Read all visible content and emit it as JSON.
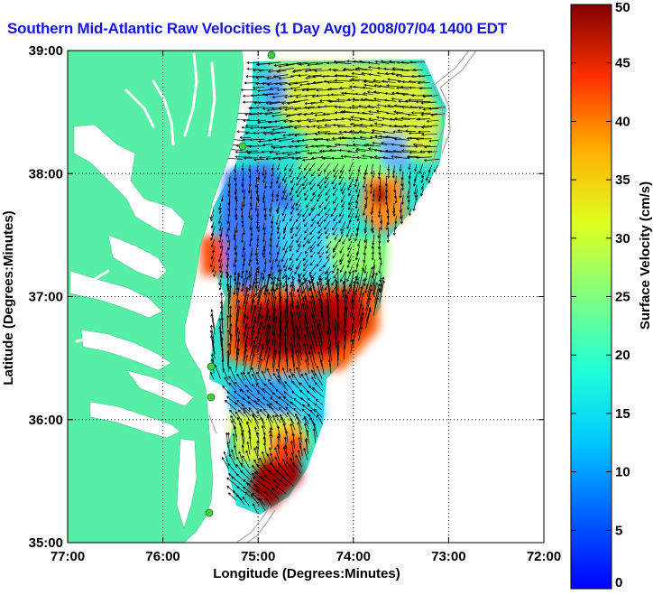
{
  "title": "Southern Mid-Atlantic Raw Velocities (1 Day Avg) 2008/07/04 1400 EDT",
  "map": {
    "x_axis": {
      "label": "Longitude (Degrees:Minutes)",
      "ticks": [
        "77:00",
        "76:00",
        "75:00",
        "74:00",
        "73:00",
        "72:00"
      ],
      "range": [
        -77,
        -72
      ]
    },
    "y_axis": {
      "label": "Latitude (Degrees:Minutes)",
      "ticks": [
        "39:00",
        "38:00",
        "37:00",
        "36:00",
        "35:00"
      ],
      "range": [
        35,
        39
      ]
    },
    "grid": "dotted",
    "colors": {
      "land": "#55efa5",
      "water": "#ffffff",
      "vector": "#000000",
      "station": "#44cc44",
      "bathymetry": "#999999"
    }
  },
  "colorbar": {
    "label": "Surface Velocity (cm/s)",
    "min": 0,
    "max": 50,
    "ticks": [
      "0",
      "5",
      "10",
      "15",
      "20",
      "25",
      "30",
      "35",
      "40",
      "45",
      "50"
    ],
    "colormap": "jet"
  }
}
